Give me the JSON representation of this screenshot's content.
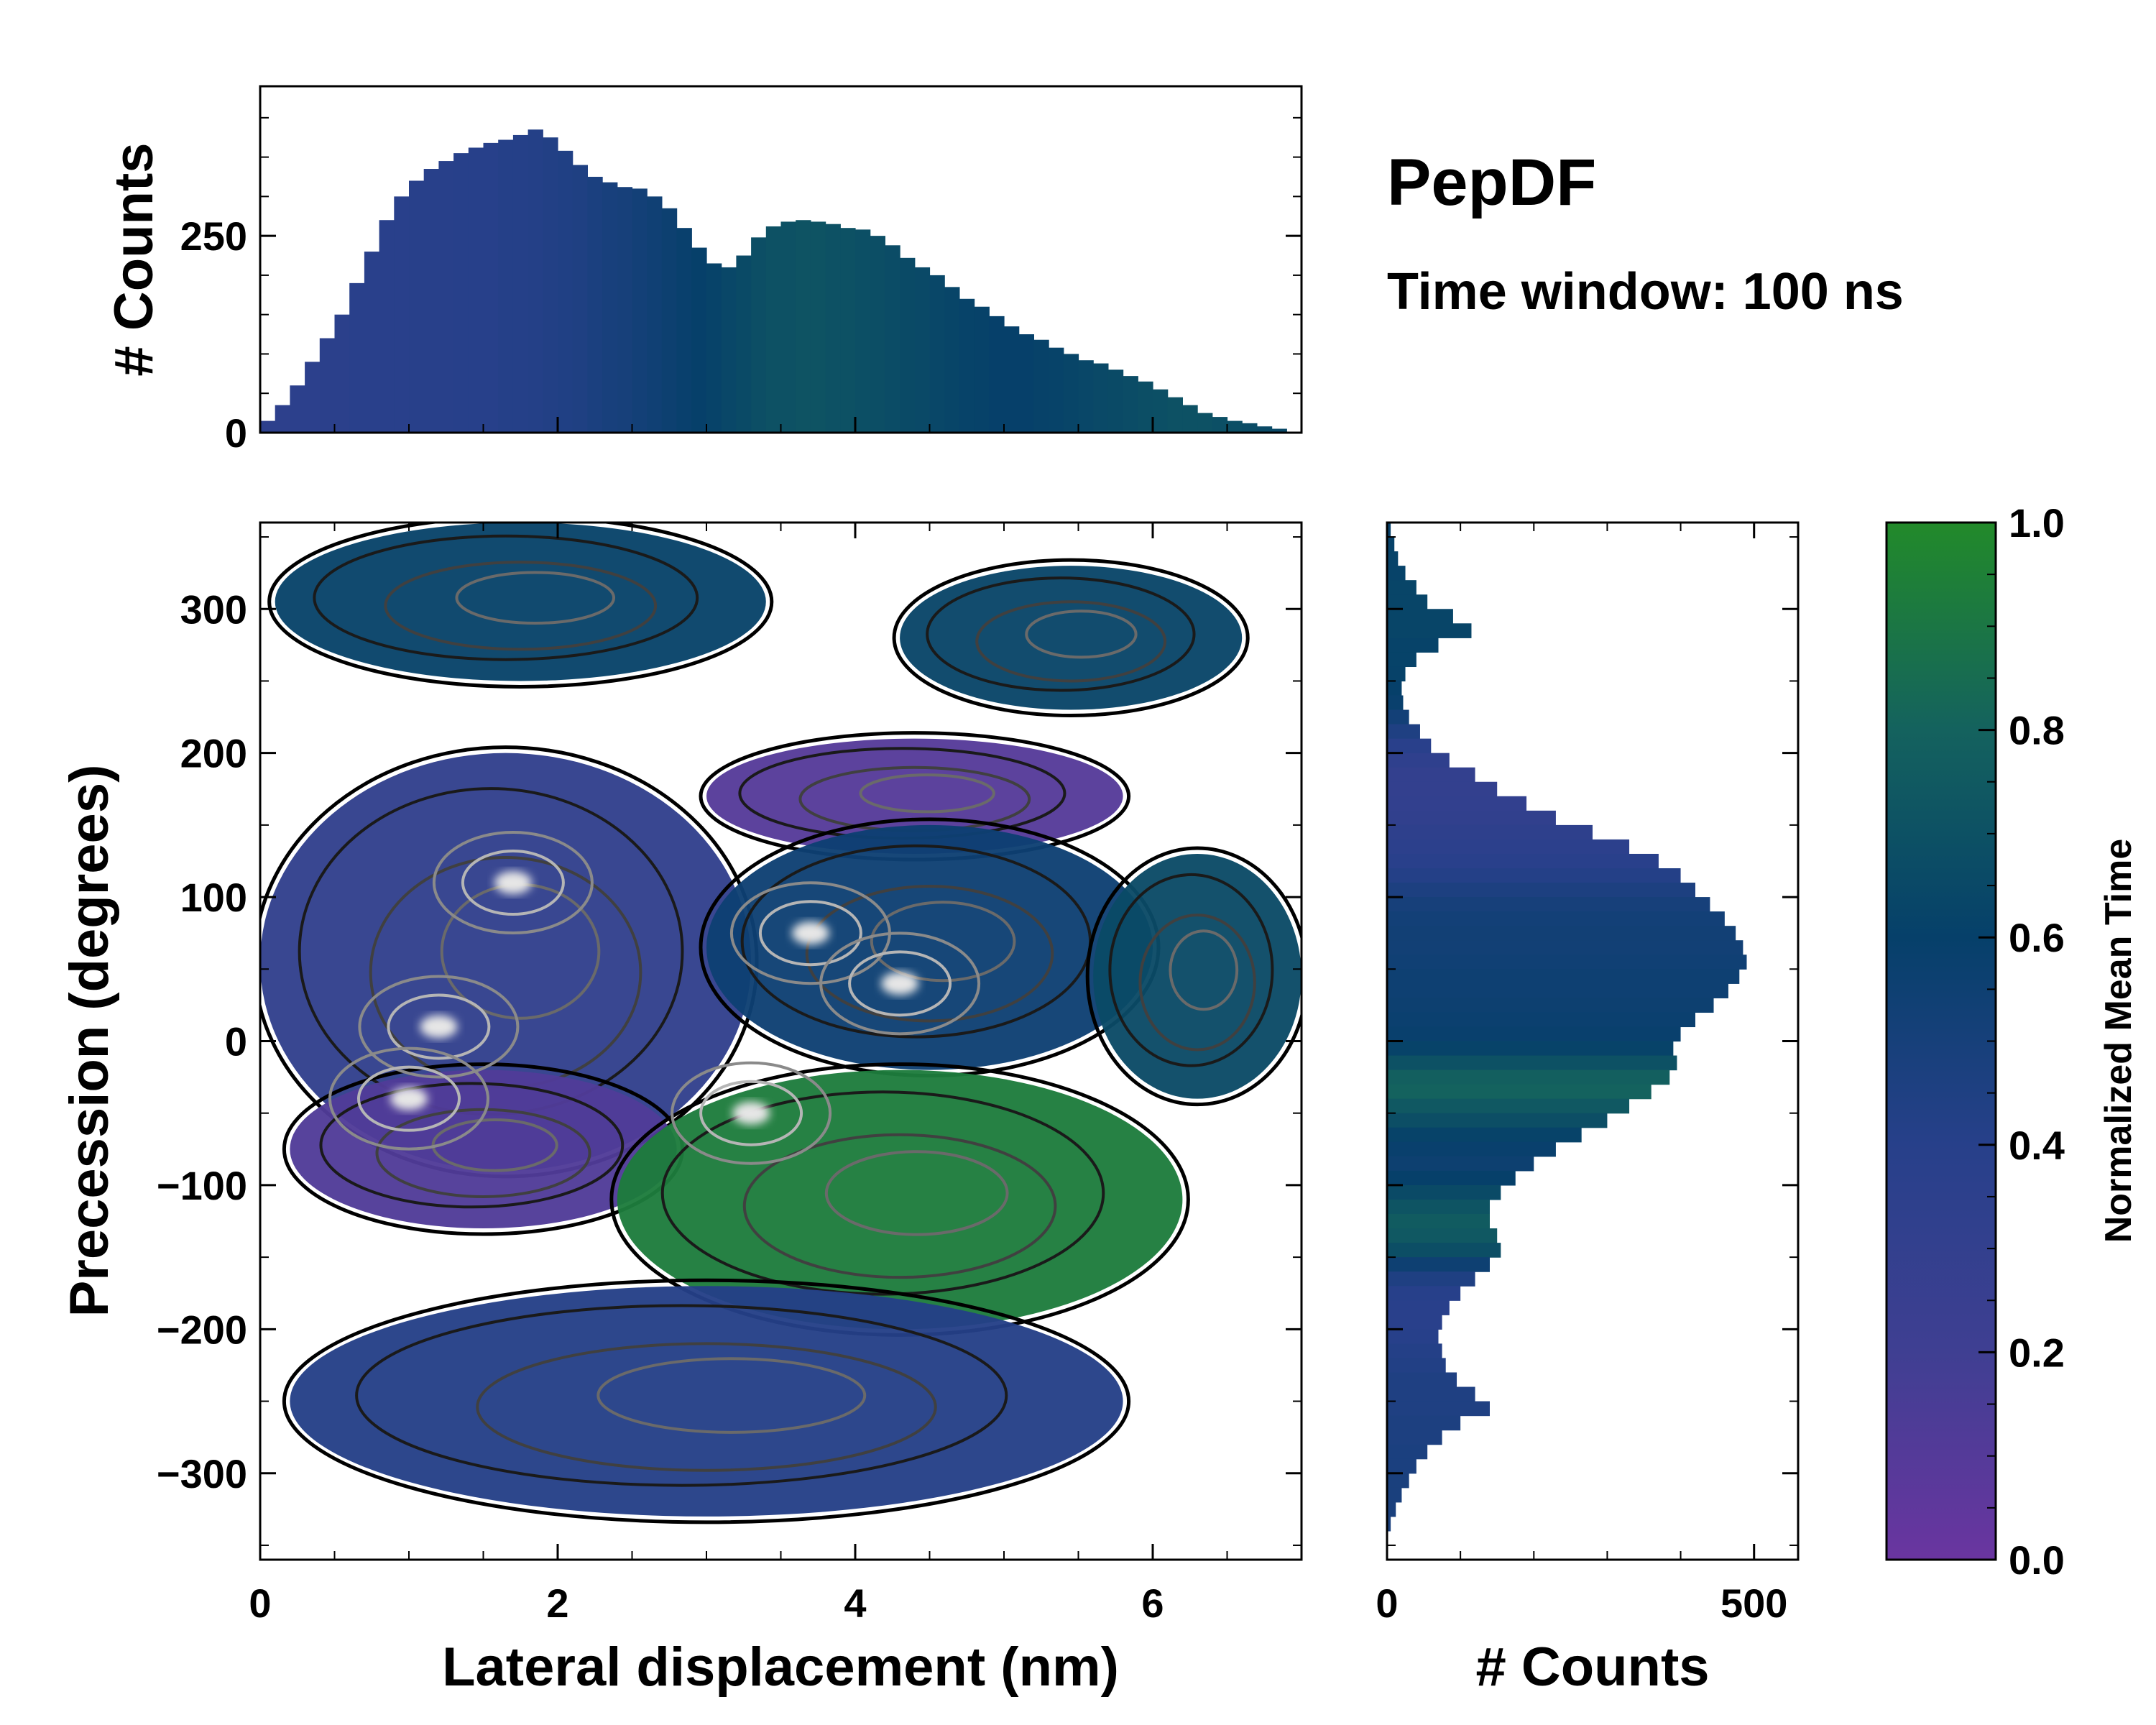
{
  "chart_data": {
    "type": "heatmap",
    "title": "PepDF",
    "subtitle": "Time window: 100 ns",
    "main": {
      "xlabel": "Lateral displacement (nm)",
      "ylabel": "Precession (degrees)",
      "xlim": [
        0,
        7
      ],
      "ylim": [
        -360,
        360
      ],
      "xticks": [
        0,
        2,
        4,
        6
      ],
      "yticks": [
        -300,
        -200,
        -100,
        0,
        100,
        200,
        300
      ],
      "xtick_labels": [
        "0",
        "2",
        "4",
        "6"
      ],
      "ytick_labels": [
        "−300",
        "−200",
        "−100",
        "0",
        "100",
        "200",
        "300"
      ],
      "colorbar_label": "Normalized Mean Time",
      "colorbar_ticks": [
        0.0,
        0.2,
        0.4,
        0.6,
        0.8,
        1.0
      ],
      "colorbar_tick_labels": [
        "0.0",
        "0.2",
        "0.4",
        "0.6",
        "0.8",
        "1.0"
      ],
      "colormap": [
        "#6a35a0",
        "#3f3f92",
        "#27408a",
        "#06406a",
        "#14625e",
        "#228a2a"
      ],
      "regions": [
        {
          "name": "upper-left lobe",
          "x_range": [
            0.1,
            3.4
          ],
          "y_range": [
            250,
            360
          ],
          "mean_time": 0.62
        },
        {
          "name": "upper-right lobe",
          "x_range": [
            4.3,
            6.6
          ],
          "y_range": [
            230,
            330
          ],
          "mean_time": 0.63
        },
        {
          "name": "upper violet band",
          "x_range": [
            3.0,
            5.8
          ],
          "y_range": [
            130,
            210
          ],
          "mean_time": 0.1
        },
        {
          "name": "left blue core",
          "x_range": [
            0.0,
            3.3
          ],
          "y_range": [
            -90,
            200
          ],
          "mean_time": 0.32
        },
        {
          "name": "left violet band",
          "x_range": [
            0.2,
            2.8
          ],
          "y_range": [
            -130,
            -20
          ],
          "mean_time": 0.12
        },
        {
          "name": "central blue-teal core",
          "x_range": [
            3.0,
            6.0
          ],
          "y_range": [
            -20,
            150
          ],
          "mean_time": 0.55
        },
        {
          "name": "right teal wing",
          "x_range": [
            5.6,
            7.0
          ],
          "y_range": [
            -40,
            130
          ],
          "mean_time": 0.66
        },
        {
          "name": "green lobe",
          "x_range": [
            2.4,
            6.2
          ],
          "y_range": [
            -200,
            -20
          ],
          "mean_time": 0.93
        },
        {
          "name": "lower blue lobe",
          "x_range": [
            0.2,
            5.8
          ],
          "y_range": [
            -330,
            -170
          ],
          "mean_time": 0.42
        }
      ],
      "density_peaks": [
        {
          "x": 1.7,
          "y": 110
        },
        {
          "x": 1.2,
          "y": 10
        },
        {
          "x": 1.0,
          "y": -40
        },
        {
          "x": 3.7,
          "y": 75
        },
        {
          "x": 4.3,
          "y": 40
        },
        {
          "x": 3.3,
          "y": -50
        }
      ]
    },
    "x_marginal": {
      "ylabel": "# Counts",
      "yticks": [
        0,
        250
      ],
      "ytick_labels": [
        "0",
        "250"
      ],
      "ylim": [
        0,
        440
      ],
      "x": [
        0.05,
        0.15,
        0.25,
        0.35,
        0.45,
        0.55,
        0.65,
        0.75,
        0.85,
        0.95,
        1.05,
        1.15,
        1.25,
        1.35,
        1.45,
        1.55,
        1.65,
        1.75,
        1.85,
        1.95,
        2.05,
        2.15,
        2.25,
        2.35,
        2.45,
        2.55,
        2.65,
        2.75,
        2.85,
        2.95,
        3.05,
        3.15,
        3.25,
        3.35,
        3.45,
        3.55,
        3.65,
        3.75,
        3.85,
        3.95,
        4.05,
        4.15,
        4.25,
        4.35,
        4.45,
        4.55,
        4.65,
        4.75,
        4.85,
        4.95,
        5.05,
        5.15,
        5.25,
        5.35,
        5.45,
        5.55,
        5.65,
        5.75,
        5.85,
        5.95,
        6.05,
        6.15,
        6.25,
        6.35,
        6.45,
        6.55,
        6.65,
        6.75,
        6.85
      ],
      "counts": [
        15,
        35,
        60,
        90,
        120,
        150,
        190,
        230,
        270,
        300,
        320,
        335,
        345,
        355,
        362,
        368,
        372,
        378,
        385,
        375,
        358,
        340,
        325,
        318,
        312,
        310,
        300,
        285,
        260,
        235,
        215,
        210,
        225,
        248,
        262,
        268,
        270,
        268,
        265,
        260,
        258,
        250,
        238,
        222,
        210,
        200,
        185,
        170,
        160,
        148,
        135,
        125,
        118,
        108,
        100,
        92,
        88,
        80,
        72,
        65,
        55,
        45,
        35,
        25,
        20,
        15,
        12,
        8,
        5
      ],
      "mean_time": [
        0.35,
        0.35,
        0.36,
        0.36,
        0.37,
        0.37,
        0.38,
        0.38,
        0.38,
        0.38,
        0.39,
        0.39,
        0.39,
        0.4,
        0.4,
        0.4,
        0.41,
        0.41,
        0.42,
        0.43,
        0.44,
        0.45,
        0.47,
        0.49,
        0.5,
        0.52,
        0.54,
        0.56,
        0.58,
        0.6,
        0.62,
        0.64,
        0.66,
        0.68,
        0.7,
        0.7,
        0.71,
        0.71,
        0.7,
        0.7,
        0.69,
        0.68,
        0.67,
        0.66,
        0.65,
        0.64,
        0.63,
        0.62,
        0.61,
        0.6,
        0.6,
        0.6,
        0.61,
        0.62,
        0.63,
        0.64,
        0.65,
        0.66,
        0.67,
        0.68,
        0.69,
        0.7,
        0.7,
        0.7,
        0.69,
        0.68,
        0.67,
        0.66,
        0.65
      ]
    },
    "y_marginal": {
      "xlabel": "# Counts",
      "xticks": [
        0,
        500
      ],
      "xtick_labels": [
        "0",
        "500"
      ],
      "xlim": [
        0,
        560
      ],
      "y": [
        355,
        345,
        335,
        325,
        315,
        305,
        295,
        285,
        275,
        265,
        255,
        245,
        235,
        225,
        215,
        205,
        195,
        185,
        175,
        165,
        155,
        145,
        135,
        125,
        115,
        105,
        95,
        85,
        75,
        65,
        55,
        45,
        35,
        25,
        15,
        5,
        -5,
        -15,
        -25,
        -35,
        -45,
        -55,
        -65,
        -75,
        -85,
        -95,
        -105,
        -115,
        -125,
        -135,
        -145,
        -155,
        -165,
        -175,
        -185,
        -195,
        -205,
        -215,
        -225,
        -235,
        -245,
        -255,
        -265,
        -275,
        -285,
        -295,
        -305,
        -315,
        -325,
        -335
      ],
      "counts": [
        5,
        10,
        15,
        25,
        40,
        55,
        90,
        115,
        70,
        40,
        25,
        20,
        22,
        30,
        45,
        60,
        85,
        120,
        150,
        190,
        230,
        280,
        330,
        370,
        400,
        420,
        440,
        460,
        475,
        485,
        490,
        480,
        465,
        445,
        420,
        400,
        390,
        395,
        385,
        360,
        330,
        300,
        265,
        230,
        200,
        175,
        155,
        140,
        140,
        150,
        155,
        140,
        120,
        100,
        85,
        75,
        70,
        75,
        80,
        95,
        120,
        140,
        100,
        75,
        55,
        40,
        30,
        20,
        12,
        5
      ],
      "mean_time": [
        0.6,
        0.61,
        0.62,
        0.62,
        0.63,
        0.63,
        0.63,
        0.63,
        0.62,
        0.62,
        0.61,
        0.6,
        0.58,
        0.52,
        0.45,
        0.38,
        0.33,
        0.3,
        0.3,
        0.31,
        0.32,
        0.34,
        0.36,
        0.38,
        0.42,
        0.46,
        0.5,
        0.52,
        0.53,
        0.53,
        0.54,
        0.55,
        0.55,
        0.56,
        0.57,
        0.58,
        0.62,
        0.7,
        0.78,
        0.8,
        0.74,
        0.68,
        0.62,
        0.58,
        0.56,
        0.6,
        0.66,
        0.72,
        0.76,
        0.74,
        0.68,
        0.55,
        0.45,
        0.4,
        0.38,
        0.38,
        0.4,
        0.42,
        0.43,
        0.45,
        0.45,
        0.45,
        0.46,
        0.46,
        0.47,
        0.47,
        0.48,
        0.48,
        0.48,
        0.48
      ]
    }
  }
}
